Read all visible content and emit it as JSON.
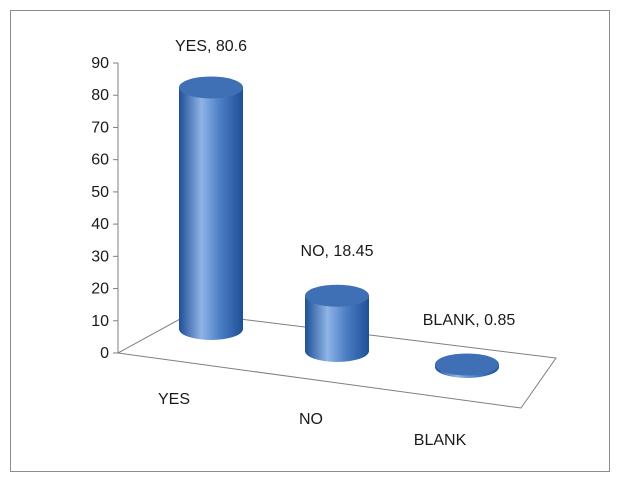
{
  "chart_data": {
    "type": "bar",
    "style": "3d-cylinder",
    "categories": [
      "YES",
      "NO",
      "BLANK"
    ],
    "values": [
      80.6,
      18.45,
      0.85
    ],
    "data_labels": [
      "YES, 80.6",
      "NO, 18.45",
      "BLANK, 0.85"
    ],
    "ylim": [
      0,
      90
    ],
    "y_ticks": [
      "0",
      "10",
      "20",
      "30",
      "40",
      "50",
      "60",
      "70",
      "80",
      "90"
    ],
    "grid": false,
    "legend": "none",
    "colors": {
      "bar_body": "#4a7dc4",
      "bar_dark": "#1f4f96",
      "bar_light": "#8fb4e6",
      "bar_top": "#3f6fb5",
      "axis": "#7f7f7f"
    }
  }
}
